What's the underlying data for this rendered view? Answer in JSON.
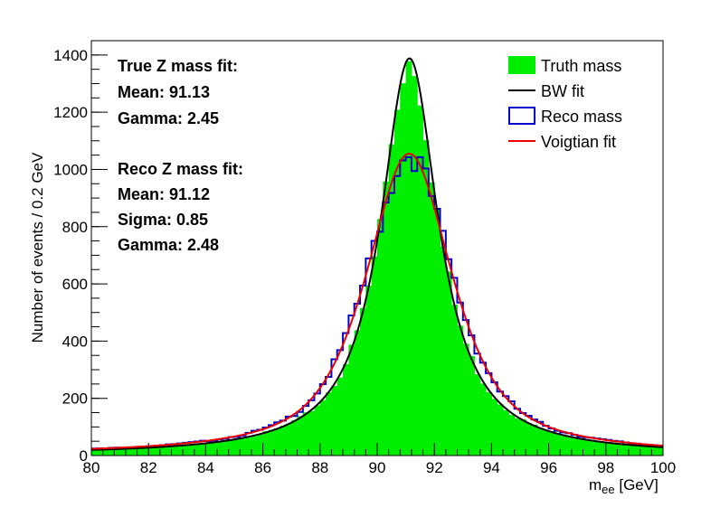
{
  "chart_data": {
    "type": "bar",
    "xlabel_main": "m",
    "xlabel_sub": "ee",
    "xlabel_unit": " [GeV]",
    "ylabel": "Number of events / 0.2 GeV",
    "xlim": [
      80,
      100
    ],
    "ylim": [
      0,
      1450
    ],
    "bin_width": 0.2,
    "xticks": [
      80,
      82,
      84,
      86,
      88,
      90,
      92,
      94,
      96,
      98,
      100
    ],
    "yticks": [
      0,
      200,
      400,
      600,
      800,
      1000,
      1200,
      1400
    ],
    "annotations": {
      "true_title": "True Z mass fit:",
      "true_mean": "Mean: 91.13",
      "true_gamma": "Gamma: 2.45",
      "reco_title": "Reco Z mass fit:",
      "reco_mean": "Mean: 91.12",
      "reco_sigma": "Sigma: 0.85",
      "reco_gamma": "Gamma: 2.48"
    },
    "fit_params": {
      "bw": {
        "mean": 91.13,
        "gamma": 2.45,
        "peak": 1385
      },
      "voigt": {
        "mean": 91.12,
        "sigma": 0.85,
        "gamma": 2.48,
        "peak": 1052
      }
    },
    "series": [
      {
        "name": "Truth mass",
        "color": "#00ee00",
        "style": "filled-histogram"
      },
      {
        "name": "BW fit",
        "color": "#000000",
        "style": "line"
      },
      {
        "name": "Reco mass",
        "color": "#0000cc",
        "style": "step-histogram"
      },
      {
        "name": "Voigtian fit",
        "color": "#ee0000",
        "style": "line"
      }
    ]
  }
}
